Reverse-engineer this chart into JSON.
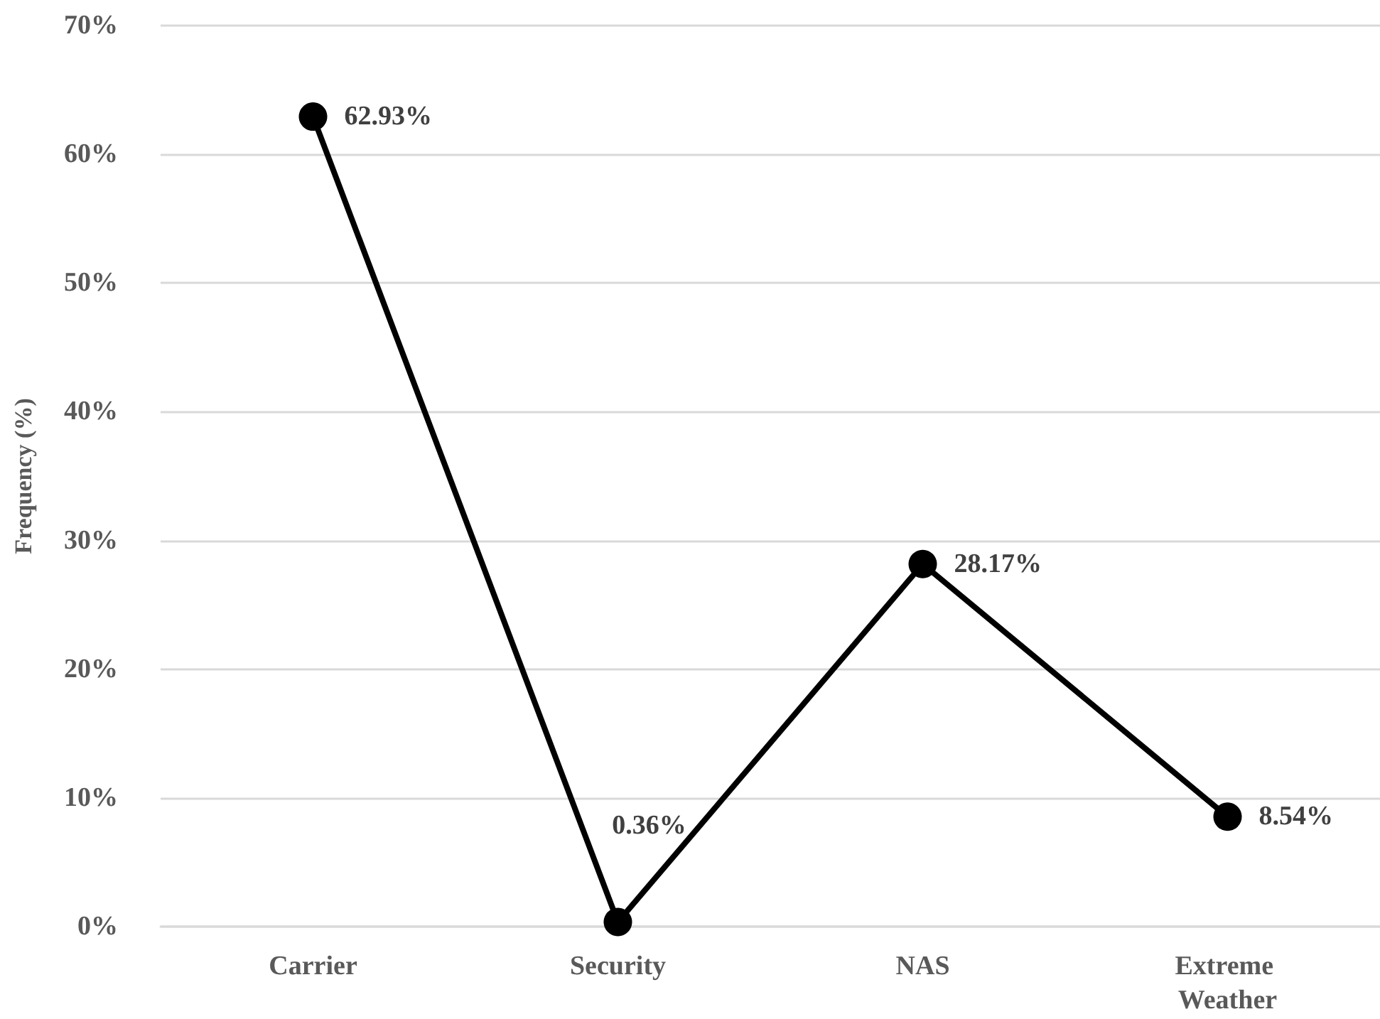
{
  "chart_data": {
    "type": "line",
    "ylabel": "Frequency (%)",
    "categories": [
      "Carrier",
      "Security",
      "NAS",
      "Extreme Weather"
    ],
    "series": [
      {
        "color": "#000000",
        "values": [
          62.93,
          0.36,
          28.17,
          8.54
        ],
        "value_labels": [
          "62.93%",
          "0.36%",
          "28.17%",
          "8.54%"
        ]
      }
    ],
    "ylim": [
      0,
      70
    ],
    "yticks": [
      {
        "value": 0,
        "label": "0%"
      },
      {
        "value": 10,
        "label": "10%"
      },
      {
        "value": 20,
        "label": "20%"
      },
      {
        "value": 30,
        "label": "30%"
      },
      {
        "value": 40,
        "label": "40%"
      },
      {
        "value": 50,
        "label": "50%"
      },
      {
        "value": 60,
        "label": "60%"
      },
      {
        "value": 70,
        "label": "70%"
      }
    ],
    "grid": "y",
    "marker": "circle",
    "line_style": "solid"
  }
}
